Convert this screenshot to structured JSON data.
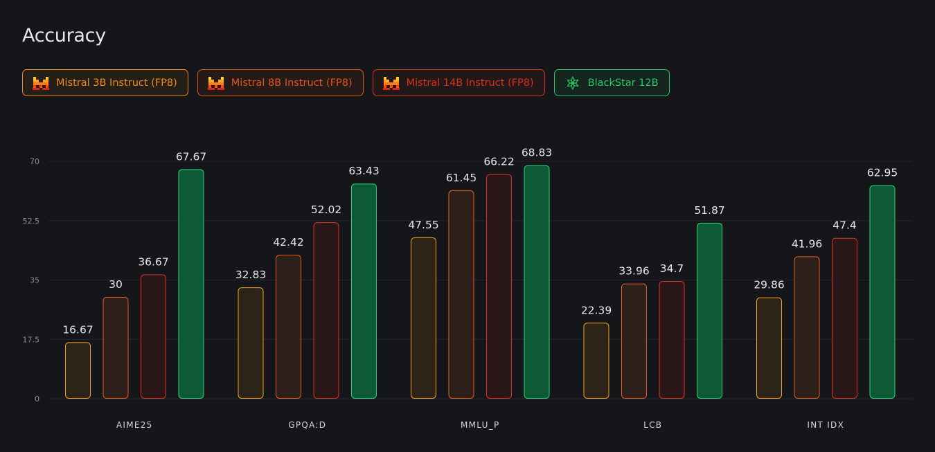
{
  "header": {
    "title": "Accuracy"
  },
  "legend": [
    {
      "label": "Mistral 3B Instruct (FP8)",
      "icon": "mistral-logo-icon",
      "color": "#f08a1c"
    },
    {
      "label": "Mistral 8B Instruct (FP8)",
      "icon": "mistral-logo-icon",
      "color": "#e4531c"
    },
    {
      "label": "Mistral 14B Instruct (FP8)",
      "icon": "mistral-logo-icon",
      "color": "#d8321c"
    },
    {
      "label": "BlackStar 12B",
      "icon": "blackstar-snowflake-icon",
      "color": "#2ac66b"
    }
  ],
  "chart_data": {
    "type": "bar",
    "categories": [
      "AIME25",
      "GPQA:D",
      "MMLU_P",
      "LCB",
      "INT IDX"
    ],
    "series": [
      {
        "name": "Mistral 3B Instruct (FP8)",
        "values": [
          16.67,
          32.83,
          47.55,
          22.39,
          29.86
        ],
        "stroke": "#f5a21c",
        "fill": "#2c2419"
      },
      {
        "name": "Mistral 8B Instruct (FP8)",
        "values": [
          30,
          42.42,
          61.45,
          33.96,
          41.96
        ],
        "stroke": "#e85b22",
        "fill": "#2d1f1a"
      },
      {
        "name": "Mistral 14B Instruct (FP8)",
        "values": [
          36.67,
          52.02,
          66.22,
          34.7,
          47.4
        ],
        "stroke": "#e0331f",
        "fill": "#2a1719"
      },
      {
        "name": "BlackStar 12B",
        "values": [
          67.67,
          63.43,
          68.83,
          51.87,
          62.95
        ],
        "stroke": "#2fd07a",
        "fill": "#0f5a36"
      }
    ],
    "yticks": [
      0,
      17.5,
      35,
      52.5,
      70
    ],
    "ylim": [
      0,
      70
    ],
    "grid": true,
    "legend_position": "top-left"
  }
}
